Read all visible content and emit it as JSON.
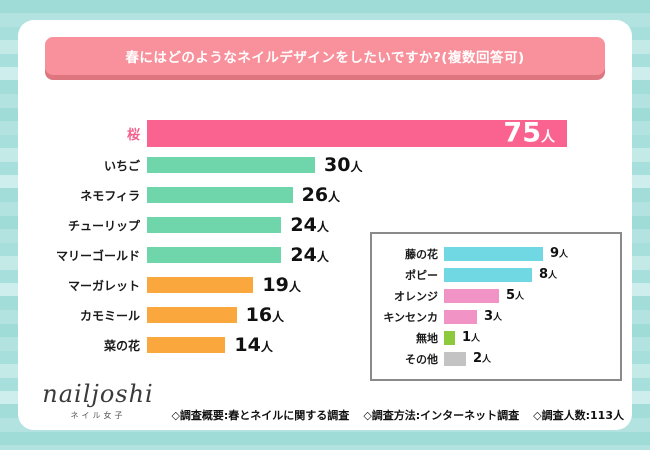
{
  "header": {
    "title": "春にはどのようなネイルデザインをしたいですか?(複数回答可)"
  },
  "chart_data": {
    "type": "bar",
    "orientation": "horizontal",
    "value_unit": "人",
    "main_series": {
      "categories": [
        "桜",
        "いちご",
        "ネモフィラ",
        "チューリップ",
        "マリーゴールド",
        "マーガレット",
        "カモミール",
        "菜の花"
      ],
      "values": [
        75,
        30,
        26,
        24,
        24,
        19,
        16,
        14
      ],
      "bar_colors": [
        "#fa6290",
        "#6fd5aa",
        "#6fd5aa",
        "#6fd5aa",
        "#6fd5aa",
        "#faa73e",
        "#faa73e",
        "#faa73e"
      ],
      "xlim": [
        0,
        80
      ],
      "grid": false,
      "value_labels": "shown at bar ends; top bar value shown inside bar in white"
    },
    "inset_series": {
      "categories": [
        "藤の花",
        "ポピー",
        "オレンジ",
        "キンセンカ",
        "無地",
        "その他"
      ],
      "values": [
        9,
        8,
        5,
        3,
        1,
        2
      ],
      "bar_colors": [
        "#6fd8e2",
        "#6fd8e2",
        "#f193c5",
        "#f193c5",
        "#8cc93c",
        "#c3c3c3"
      ],
      "xlim": [
        0,
        10
      ],
      "grid": false
    }
  },
  "footer": {
    "logo": "nailjoshi",
    "logo_sub": "ネイル女子",
    "notes": [
      "◇調査概要:春とネイルに関する調査",
      "◇調査方法:インターネット調査",
      "◇調査人数:113人"
    ]
  },
  "colors": {
    "banner_bg": "#f8919b",
    "banner_shadow": "#de7680",
    "banner_text": "#ffffff",
    "hero_bar": "#fa6290",
    "hero_label": "#f4618e",
    "mint_bar": "#6fd5aa",
    "orange_bar": "#faa73e",
    "cyan_bar": "#6fd8e2",
    "pink_bar": "#f193c5",
    "lime_bar": "#8cc93c",
    "gray_bar": "#c3c3c3",
    "inset_border": "#8a8a8a",
    "background_stripe_dark": "#9fdcd8",
    "background_stripe_light": "#cdeeec",
    "card_bg": "#ffffff",
    "text": "#111111"
  }
}
